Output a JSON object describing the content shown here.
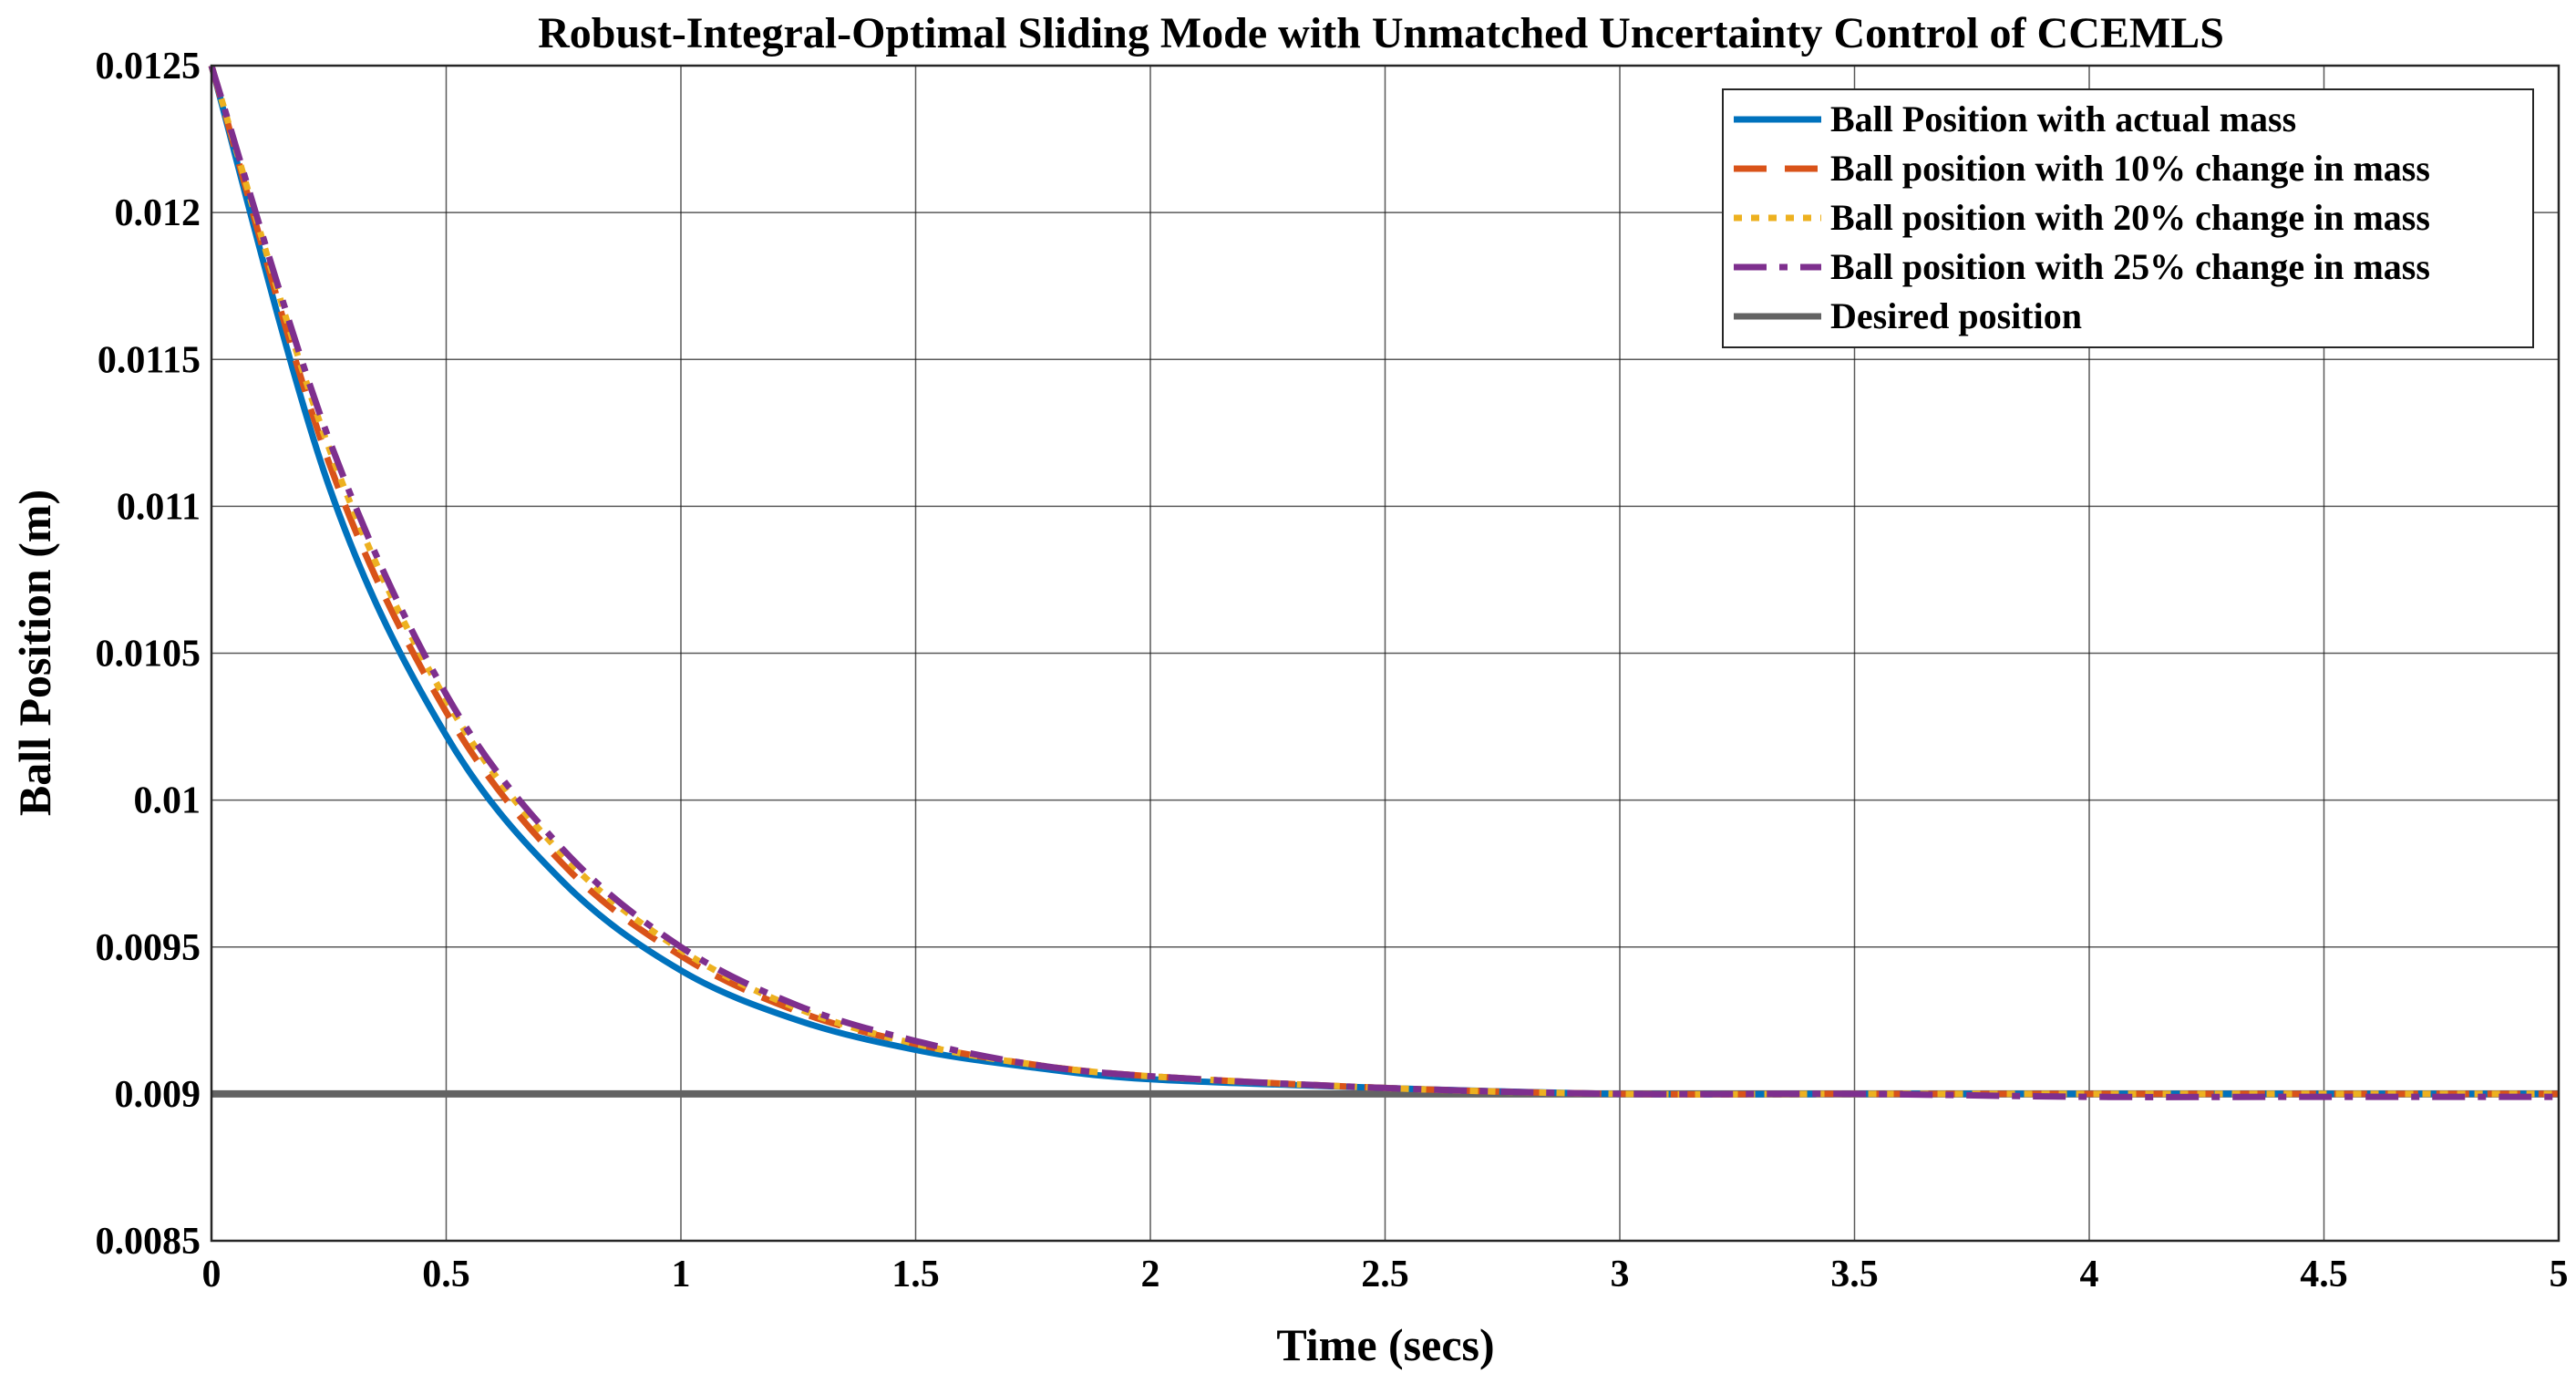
{
  "chart_data": {
    "type": "line",
    "title": "Robust-Integral-Optimal Sliding Mode with Unmatched Uncertainty Control of CCEMLS",
    "xlabel": "Time (secs)",
    "ylabel": "Ball Position (m)",
    "xlim": [
      0,
      5
    ],
    "ylim": [
      0.0085,
      0.0125
    ],
    "xticks": [
      0,
      0.5,
      1,
      1.5,
      2,
      2.5,
      3,
      3.5,
      4,
      4.5,
      5
    ],
    "xtick_labels": [
      "0",
      "0.5",
      "1",
      "1.5",
      "2",
      "2.5",
      "3",
      "3.5",
      "4",
      "4.5",
      "5"
    ],
    "yticks": [
      0.0085,
      0.009,
      0.0095,
      0.01,
      0.0105,
      0.011,
      0.0115,
      0.012,
      0.0125
    ],
    "ytick_labels": [
      "0.0085",
      "0.009",
      "0.0095",
      "0.01",
      "0.0105",
      "0.011",
      "0.0115",
      "0.012",
      "0.0125"
    ],
    "grid": true,
    "legend_position": "top-right",
    "x": [
      0,
      0.25,
      0.5,
      0.75,
      1,
      1.25,
      1.5,
      1.75,
      2,
      2.5,
      3,
      3.5,
      4,
      4.5,
      5
    ],
    "series": [
      {
        "name": "Ball Position with actual mass",
        "color": "#0072BD",
        "dash": "solid",
        "values": [
          0.0125,
          0.01107,
          0.01022,
          0.00972,
          0.00942,
          0.00925,
          0.00915,
          0.00909,
          0.00905,
          0.00902,
          0.009,
          0.009,
          0.009,
          0.009,
          0.009
        ]
      },
      {
        "name": "Ball position with 10% change in mass",
        "color": "#D95319",
        "dash": "dashed",
        "values": [
          0.0125,
          0.01115,
          0.0103,
          0.00978,
          0.00947,
          0.00928,
          0.00917,
          0.0091,
          0.00906,
          0.00902,
          0.009,
          0.009,
          0.009,
          0.009,
          0.009
        ]
      },
      {
        "name": "Ball position with 20% change in mass",
        "color": "#EDB120",
        "dash": "dotted",
        "values": [
          0.0125,
          0.0112,
          0.01034,
          0.00981,
          0.00949,
          0.00929,
          0.00917,
          0.0091,
          0.00906,
          0.00902,
          0.009,
          0.009,
          0.009,
          0.009,
          0.009
        ]
      },
      {
        "name": "Ball position with 25% change in mass",
        "color": "#7E2F8E",
        "dash": "dashdot",
        "values": [
          0.0125,
          0.01123,
          0.01036,
          0.00983,
          0.0095,
          0.0093,
          0.00918,
          0.0091,
          0.00906,
          0.00902,
          0.009,
          0.009,
          0.00899,
          0.00899,
          0.00899
        ]
      },
      {
        "name": "Desired position",
        "color": "#636363",
        "dash": "solid",
        "values": [
          0.009,
          0.009,
          0.009,
          0.009,
          0.009,
          0.009,
          0.009,
          0.009,
          0.009,
          0.009,
          0.009,
          0.009,
          0.009,
          0.009,
          0.009
        ]
      }
    ]
  }
}
